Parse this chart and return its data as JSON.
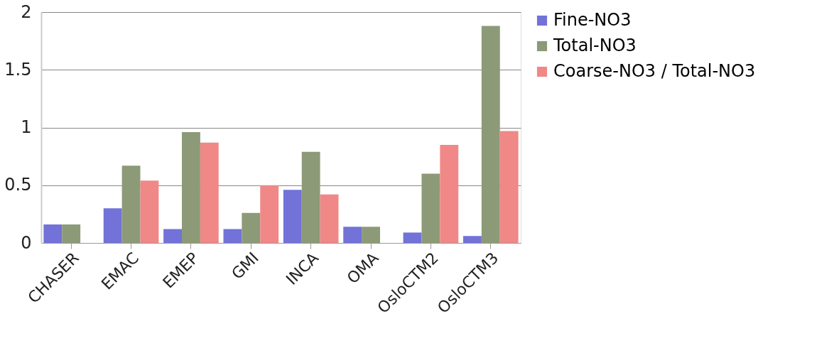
{
  "chart_data": {
    "type": "bar",
    "categories": [
      "CHASER",
      "EMAC",
      "EMEP",
      "GMI",
      "INCA",
      "OMA",
      "OsloCTM2",
      "OsloCTM3"
    ],
    "series": [
      {
        "name": "Fine-NO3",
        "color": "#7272d8",
        "values": [
          0.16,
          0.3,
          0.12,
          0.12,
          0.46,
          0.14,
          0.09,
          0.06
        ]
      },
      {
        "name": "Total-NO3",
        "color": "#8c9a78",
        "values": [
          0.16,
          0.67,
          0.96,
          0.26,
          0.79,
          0.14,
          0.6,
          1.88
        ]
      },
      {
        "name": "Coarse-NO3 / Total-NO3",
        "color": "#f08888",
        "values": [
          null,
          0.54,
          0.87,
          0.5,
          0.42,
          null,
          0.85,
          0.97
        ]
      }
    ],
    "ylim": [
      0,
      2
    ],
    "yticks": [
      0,
      0.5,
      1,
      1.5,
      2
    ],
    "grid": "y",
    "legend": "right"
  }
}
